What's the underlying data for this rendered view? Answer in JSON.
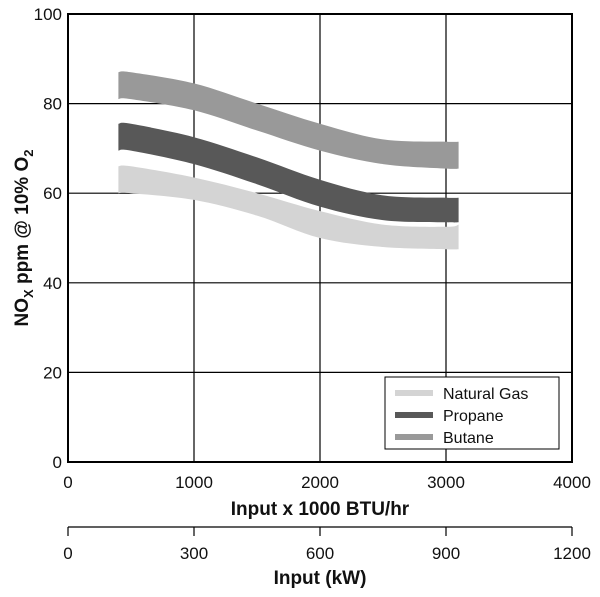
{
  "chart_data": {
    "type": "area",
    "title": "",
    "xlabel": "Input x 1000 BTU/hr",
    "secondary_xlabel": "Input (kW)",
    "ylabel": {
      "pre": "NO",
      "sub1": "X",
      "mid": " ppm @ 10% O",
      "sub2": "2"
    },
    "xlim": [
      0,
      4000
    ],
    "ylim": [
      0,
      100
    ],
    "xticks": [
      0,
      1000,
      2000,
      3000,
      4000
    ],
    "xtick_labels": [
      "0",
      "1000",
      "2000",
      "3000",
      "4000"
    ],
    "yticks": [
      0,
      20,
      40,
      60,
      80,
      100
    ],
    "ytick_labels": [
      "0",
      "20",
      "40",
      "60",
      "80",
      "100"
    ],
    "secondary_xlim": [
      0,
      1200
    ],
    "secondary_xticks": [
      0,
      300,
      600,
      900,
      1200
    ],
    "secondary_xtick_labels": [
      "0",
      "300",
      "600",
      "900",
      "1200"
    ],
    "grid": true,
    "legend_position": "bottom-right",
    "x": [
      400,
      500,
      1000,
      1500,
      2000,
      2500,
      3000,
      3100
    ],
    "series": [
      {
        "name": "Natural Gas",
        "color": "#d4d4d4",
        "upper": [
          66,
          66,
          63.5,
          60,
          56,
          53,
          52.5,
          53
        ],
        "lower": [
          60,
          60,
          58.5,
          55,
          50,
          48,
          47.5,
          47.5
        ]
      },
      {
        "name": "Propane",
        "color": "#585858",
        "upper": [
          75.5,
          75.5,
          72.5,
          68,
          63,
          59.5,
          59,
          59
        ],
        "lower": [
          69.5,
          69.5,
          66.5,
          62,
          57,
          54,
          53.5,
          53.5
        ]
      },
      {
        "name": "Butane",
        "color": "#999999",
        "upper": [
          87,
          87,
          84.5,
          80,
          75.5,
          72,
          71.5,
          71.5
        ],
        "lower": [
          81,
          81,
          78.5,
          74,
          69.5,
          66.5,
          65.5,
          65.5
        ]
      }
    ]
  }
}
